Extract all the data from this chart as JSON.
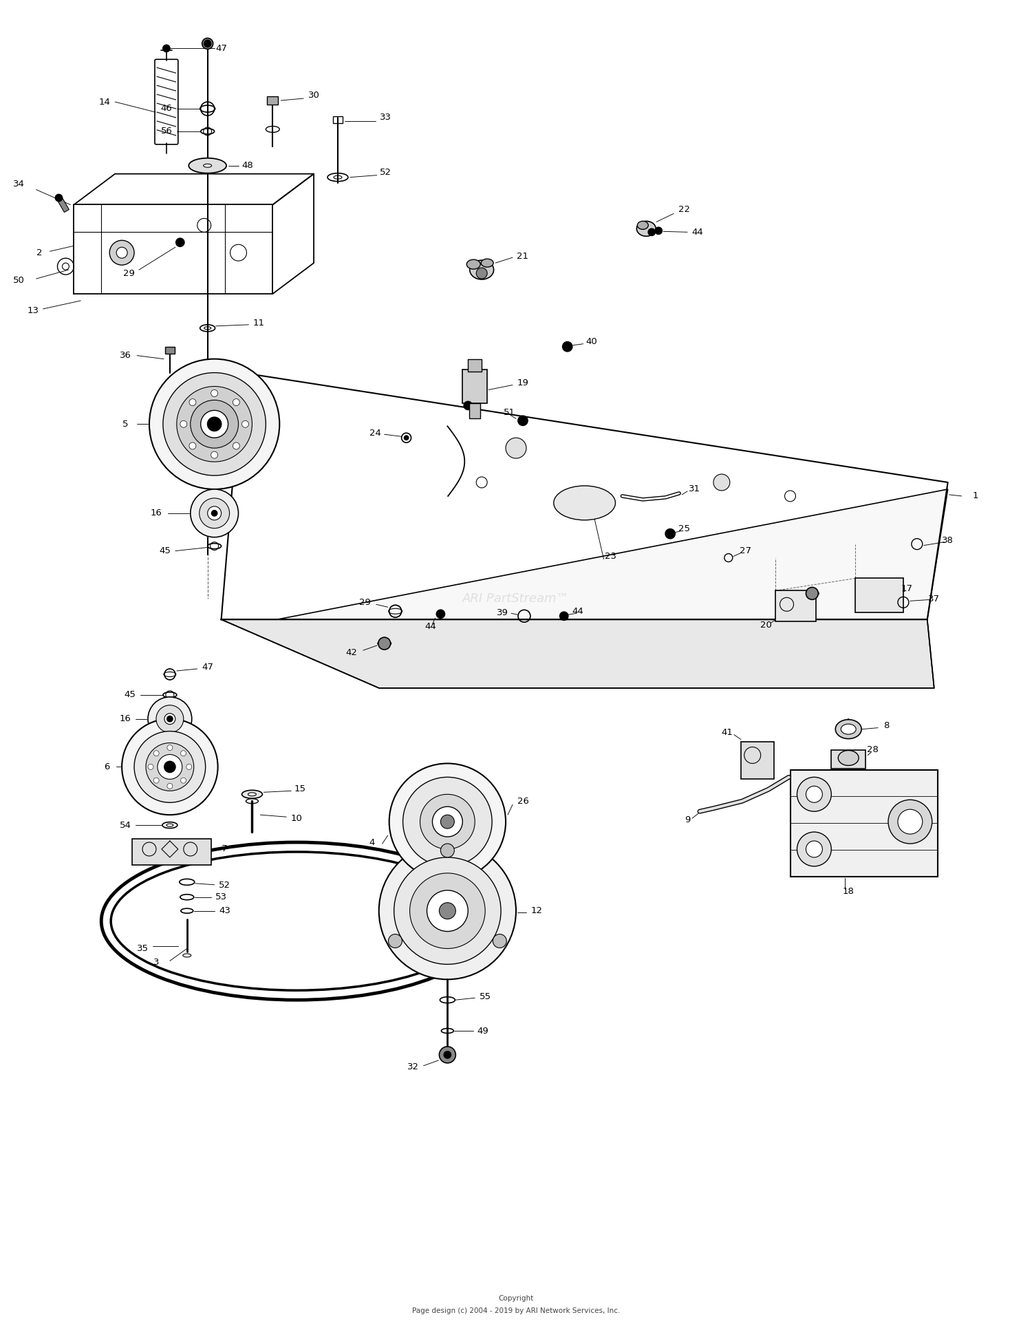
{
  "copyright_line1": "Copyright",
  "copyright_line2": "Page design (c) 2004 - 2019 by ARI Network Services, Inc.",
  "watermark": "ARI PartStream",
  "background_color": "#ffffff",
  "line_color": "#000000",
  "fig_width": 15.0,
  "fig_height": 19.27,
  "dpi": 100,
  "label_fontsize": 9.5,
  "lw_main": 1.3,
  "lw_thin": 0.7,
  "lw_leader": 0.65
}
